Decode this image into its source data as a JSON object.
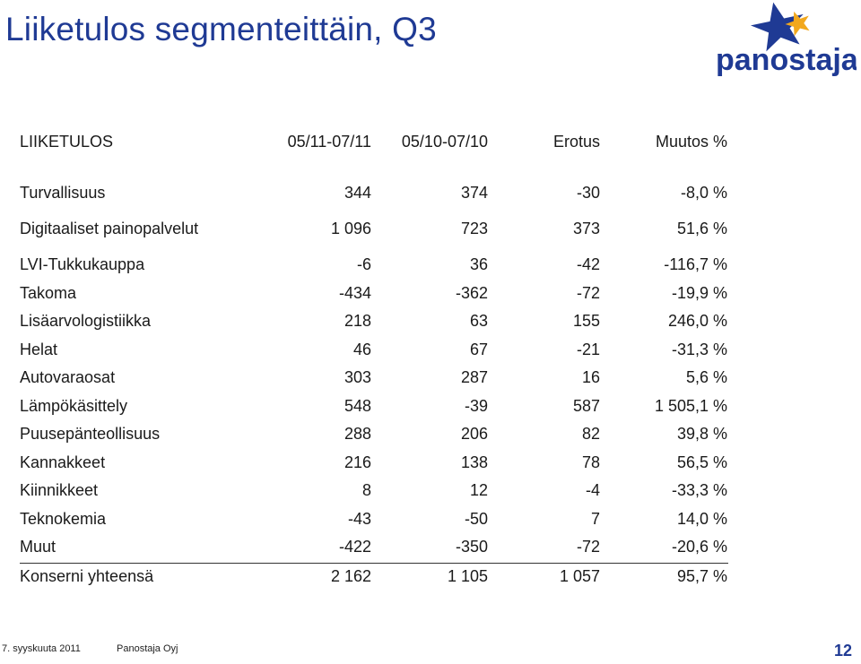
{
  "title": "Liiketulos segmenteittäin, Q3",
  "logo": {
    "text": "panostaja",
    "brand_color": "#1f3a94",
    "star_color": "#f2a81d"
  },
  "table": {
    "header": [
      "LIIKETULOS",
      "05/11-07/11",
      "05/10-07/10",
      "Erotus",
      "Muutos %"
    ],
    "rows": [
      [
        "Turvallisuus",
        "344",
        "374",
        "-30",
        "-8,0 %"
      ],
      [
        "Digitaaliset painopalvelut",
        "1 096",
        "723",
        "373",
        "51,6 %"
      ],
      [
        "LVI-Tukkukauppa",
        "-6",
        "36",
        "-42",
        "-116,7 %"
      ],
      [
        "Takoma",
        "-434",
        "-362",
        "-72",
        "-19,9 %"
      ],
      [
        "Lisäarvologistiikka",
        "218",
        "63",
        "155",
        "246,0 %"
      ],
      [
        "Helat",
        "46",
        "67",
        "-21",
        "-31,3 %"
      ],
      [
        "Autovaraosat",
        "303",
        "287",
        "16",
        "5,6 %"
      ],
      [
        "Lämpökäsittely",
        "548",
        "-39",
        "587",
        "1 505,1 %"
      ],
      [
        "Puusepänteollisuus",
        "288",
        "206",
        "82",
        "39,8 %"
      ],
      [
        "Kannakkeet",
        "216",
        "138",
        "78",
        "56,5 %"
      ],
      [
        "Kiinnikkeet",
        "8",
        "12",
        "-4",
        "-33,3 %"
      ],
      [
        "Teknokemia",
        "-43",
        "-50",
        "7",
        "14,0 %"
      ],
      [
        "Muut",
        "-422",
        "-350",
        "-72",
        "-20,6 %"
      ]
    ],
    "total": [
      "Konserni yhteensä",
      "2 162",
      "1 105",
      "1 057",
      "95,7 %"
    ]
  },
  "footer": {
    "date": "7. syyskuuta 2011",
    "company": "Panostaja Oyj",
    "page": "12"
  }
}
